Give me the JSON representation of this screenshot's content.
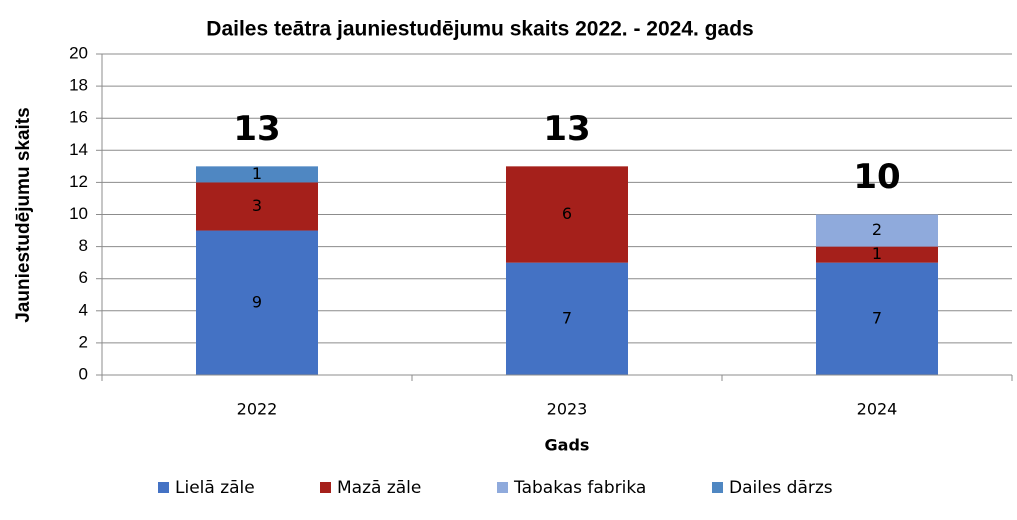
{
  "chart_data": {
    "type": "stacked_bar",
    "title": "Dailes teātra jauniestudējumu skaits 2022. - 2024. gads",
    "x_label": "Gads",
    "y_label": "Jauniestudējumu skaits",
    "categories": [
      "2022",
      "2023",
      "2024"
    ],
    "series": [
      {
        "name": "Lielā zāle",
        "color": "#4472c4",
        "values": [
          9,
          7,
          7
        ]
      },
      {
        "name": "Mazā zāle",
        "color": "#a5201b",
        "values": [
          3,
          6,
          1
        ]
      },
      {
        "name": "Tabakas fabrika",
        "color": "#8faadc",
        "values": [
          null,
          null,
          2
        ]
      },
      {
        "name": "Dailes dārzs",
        "color": "#4f87c2",
        "values": [
          1,
          null,
          null
        ]
      }
    ],
    "totals": [
      13,
      13,
      10
    ],
    "ylim": [
      0,
      20
    ],
    "yticks": [
      0,
      2,
      4,
      6,
      8,
      10,
      12,
      14,
      16,
      18,
      20
    ],
    "grid": true,
    "legend": "bottom"
  }
}
